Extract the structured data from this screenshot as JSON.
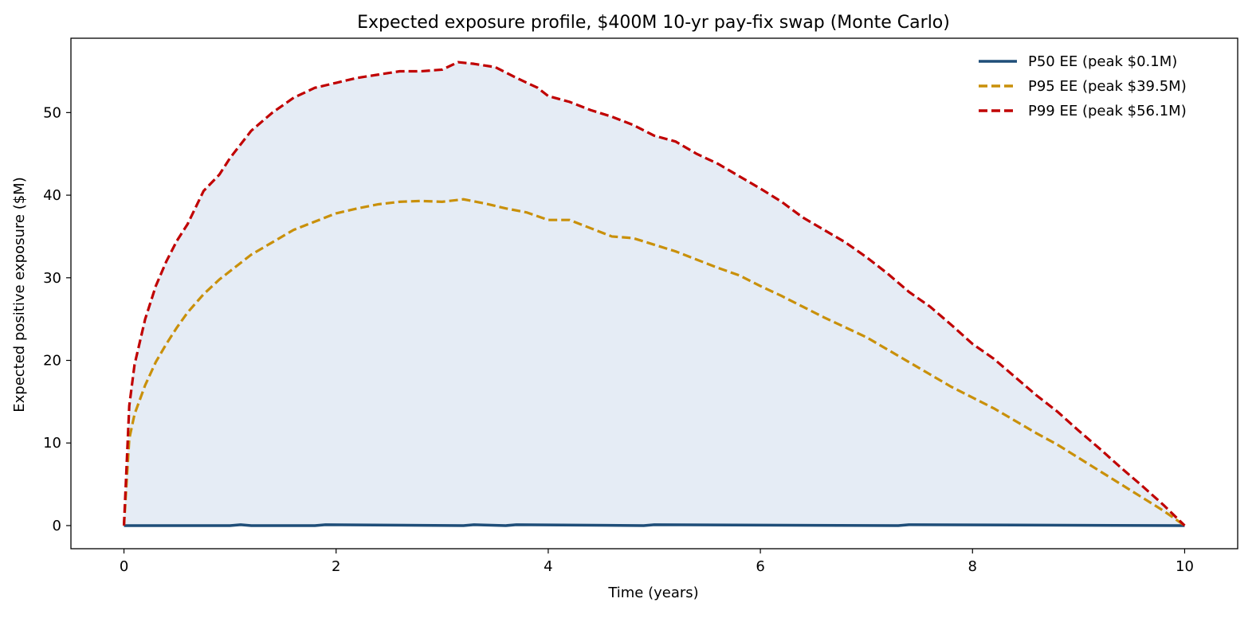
{
  "chart_data": {
    "type": "line",
    "title": "Expected exposure profile, $400M 10-yr pay-fix swap (Monte Carlo)",
    "xlabel": "Time  (years)",
    "ylabel": "Expected positive exposure  ($M)",
    "xlim": [
      -0.5,
      10.5
    ],
    "ylim": [
      -2.8,
      59.0
    ],
    "xticks": [
      0,
      2,
      4,
      6,
      8,
      10
    ],
    "yticks": [
      0,
      10,
      20,
      30,
      40,
      50
    ],
    "grid": false,
    "legend_position": "top-right",
    "fill_between": {
      "from": "P50 EE (peak $0.1M)",
      "to": "P99 EE (peak $56.1M)",
      "color": "#e5ecf5"
    },
    "series": [
      {
        "name": "P50 EE (peak $0.1M)",
        "color": "#1f4e79",
        "style": "solid",
        "x": [
          0,
          1,
          1.1,
          1.2,
          1.8,
          1.9,
          3.2,
          3.3,
          3.6,
          3.7,
          4.9,
          5.0,
          7.3,
          7.4,
          10
        ],
        "y": [
          0,
          0,
          0.1,
          0,
          0,
          0.1,
          0,
          0.1,
          0,
          0.1,
          0,
          0.1,
          0,
          0.1,
          0
        ]
      },
      {
        "name": "P95 EE (peak $39.5M)",
        "color": "#c9900a",
        "style": "dashed",
        "x": [
          0,
          0.05,
          0.1,
          0.2,
          0.3,
          0.4,
          0.5,
          0.6,
          0.75,
          0.9,
          1.0,
          1.2,
          1.4,
          1.6,
          1.8,
          2.0,
          2.2,
          2.4,
          2.6,
          2.8,
          3.0,
          3.2,
          3.4,
          3.6,
          3.8,
          4.0,
          4.2,
          4.4,
          4.6,
          4.8,
          5.0,
          5.2,
          5.4,
          5.6,
          5.8,
          6.0,
          6.2,
          6.4,
          6.6,
          6.8,
          7.0,
          7.2,
          7.4,
          7.6,
          7.8,
          8.0,
          8.2,
          8.4,
          8.6,
          8.8,
          9.0,
          9.2,
          9.4,
          9.6,
          9.8,
          10.0
        ],
        "y": [
          0,
          10.5,
          13.5,
          17.0,
          19.8,
          22.0,
          24.0,
          25.8,
          28.0,
          29.8,
          30.8,
          32.8,
          34.3,
          35.8,
          36.8,
          37.8,
          38.4,
          38.9,
          39.2,
          39.3,
          39.2,
          39.5,
          39.0,
          38.4,
          37.9,
          37.0,
          37.0,
          36.0,
          35.0,
          34.8,
          34.0,
          33.2,
          32.2,
          31.2,
          30.3,
          29.0,
          27.8,
          26.5,
          25.2,
          24.0,
          22.8,
          21.3,
          19.8,
          18.3,
          16.8,
          15.5,
          14.2,
          12.7,
          11.2,
          9.8,
          8.2,
          6.6,
          5.0,
          3.4,
          1.8,
          0
        ]
      },
      {
        "name": "P99 EE (peak $56.1M)",
        "color": "#c00000",
        "style": "dashed",
        "x": [
          0,
          0.05,
          0.1,
          0.2,
          0.3,
          0.4,
          0.5,
          0.6,
          0.75,
          0.9,
          1.0,
          1.2,
          1.4,
          1.6,
          1.8,
          2.0,
          2.2,
          2.4,
          2.6,
          2.8,
          3.0,
          3.15,
          3.3,
          3.5,
          3.7,
          3.9,
          4.0,
          4.2,
          4.4,
          4.6,
          4.8,
          5.0,
          5.2,
          5.4,
          5.6,
          5.8,
          6.0,
          6.2,
          6.4,
          6.6,
          6.8,
          7.0,
          7.2,
          7.4,
          7.6,
          7.8,
          8.0,
          8.2,
          8.4,
          8.6,
          8.8,
          9.0,
          9.2,
          9.4,
          9.6,
          9.8,
          10.0
        ],
        "y": [
          0,
          14.5,
          19.5,
          25.0,
          29.0,
          32.0,
          34.5,
          36.5,
          40.5,
          42.5,
          44.5,
          47.8,
          50.0,
          51.8,
          53.0,
          53.6,
          54.2,
          54.6,
          55.0,
          55.0,
          55.2,
          56.1,
          55.9,
          55.5,
          54.2,
          53.0,
          52.0,
          51.3,
          50.3,
          49.5,
          48.5,
          47.2,
          46.5,
          45.0,
          43.8,
          42.3,
          40.8,
          39.2,
          37.3,
          35.8,
          34.3,
          32.5,
          30.5,
          28.3,
          26.5,
          24.3,
          22.0,
          20.2,
          18.0,
          15.8,
          13.8,
          11.5,
          9.3,
          7.0,
          4.8,
          2.5,
          0
        ]
      }
    ]
  }
}
